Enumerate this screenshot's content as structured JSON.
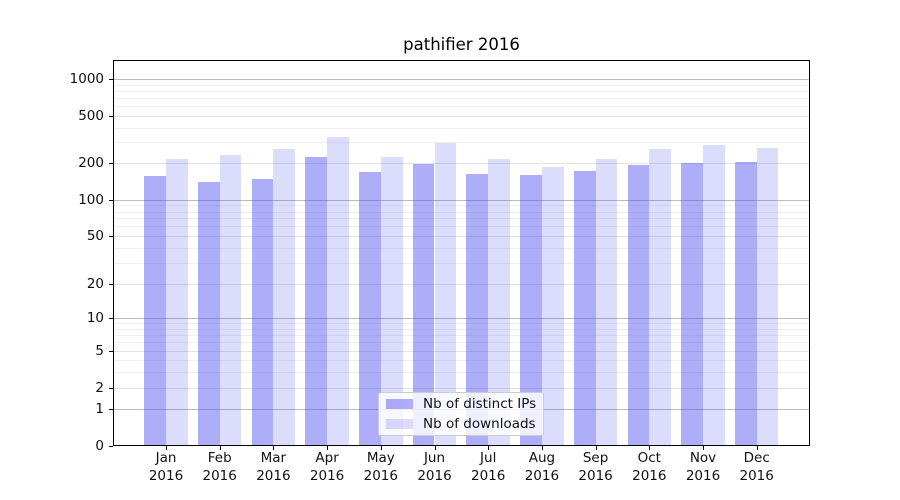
{
  "chart_data": {
    "type": "bar",
    "title": "pathifier 2016",
    "categories": [
      "Jan",
      "Feb",
      "Mar",
      "Apr",
      "May",
      "Jun",
      "Jul",
      "Aug",
      "Sep",
      "Oct",
      "Nov",
      "Dec"
    ],
    "category_year": "2016",
    "series": [
      {
        "name": "Nb of distinct IPs",
        "color": "rgba(68,68,238,0.44)",
        "color_hex_composited": "#a9a9f5",
        "values": [
          158,
          141,
          148,
          226,
          170,
          198,
          164,
          160,
          172,
          193,
          200,
          204
        ]
      },
      {
        "name": "Nb of downloads",
        "color": "rgba(68,68,238,0.19)",
        "color_hex_composited": "#dcdcf9",
        "values": [
          217,
          236,
          266,
          336,
          226,
          295,
          216,
          188,
          217,
          264,
          285,
          270
        ]
      }
    ],
    "xlabel": "",
    "ylabel": "",
    "yscale": "symlog",
    "yticks": [
      0,
      1,
      2,
      5,
      10,
      20,
      50,
      100,
      200,
      500,
      1000
    ],
    "ylim": [
      0,
      1440
    ],
    "grid": true,
    "legend_position": "lower center"
  }
}
